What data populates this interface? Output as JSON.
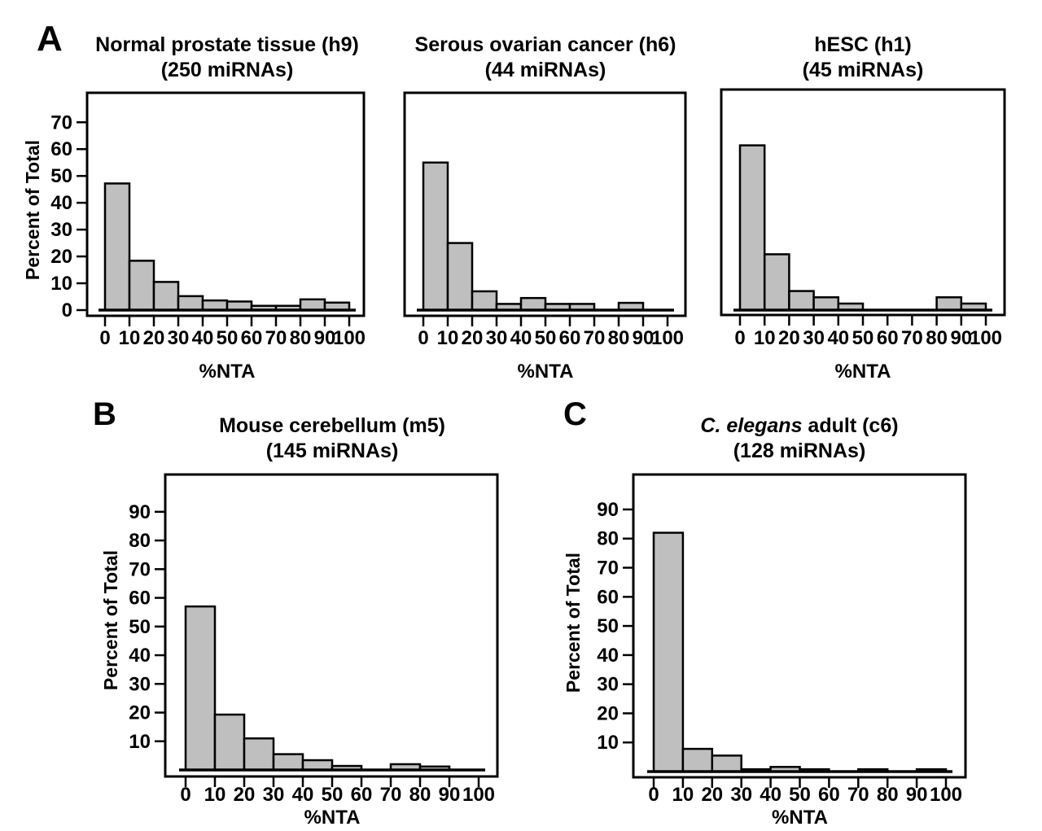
{
  "sections": [
    "A",
    "B",
    "C"
  ],
  "style": {
    "background": "#ffffff",
    "bar_fill": "#bfbfbf",
    "bar_stroke": "#000000",
    "axis_color": "#000000",
    "text_color": "#000000"
  },
  "chart_data": [
    {
      "id": "h9",
      "type": "bar",
      "section": "A",
      "title_parts": [
        {
          "text": "Normal prostate tissue (h9)",
          "italic": false
        }
      ],
      "subtitle": "(250 miRNAs)",
      "n_mirnas": 250,
      "xlabel": "%NTA",
      "ylabel": "Percent of Total",
      "show_ylabel": true,
      "bin_edges": [
        0,
        10,
        20,
        30,
        40,
        50,
        60,
        70,
        80,
        90,
        100
      ],
      "categories": [
        "0-10",
        "10-20",
        "20-30",
        "30-40",
        "40-50",
        "50-60",
        "60-70",
        "70-80",
        "80-90",
        "90-100"
      ],
      "values": [
        47.2,
        18.4,
        10.5,
        5.2,
        3.6,
        3.2,
        1.6,
        1.6,
        4.0,
        2.8
      ],
      "xlim": [
        0,
        100
      ],
      "ylim": [
        0,
        81
      ],
      "xticks": [
        0,
        10,
        20,
        30,
        40,
        50,
        60,
        70,
        80,
        90,
        100
      ],
      "yticks": [
        0,
        10,
        20,
        30,
        40,
        50,
        60,
        70
      ],
      "grid": false
    },
    {
      "id": "h6",
      "type": "bar",
      "section": "A",
      "title_parts": [
        {
          "text": "Serous ovarian cancer (h6)",
          "italic": false
        }
      ],
      "subtitle": "(44 miRNAs)",
      "n_mirnas": 44,
      "xlabel": "%NTA",
      "ylabel": "Percent of Total",
      "show_ylabel": false,
      "bin_edges": [
        0,
        10,
        20,
        30,
        40,
        50,
        60,
        70,
        80,
        90,
        100
      ],
      "categories": [
        "0-10",
        "10-20",
        "20-30",
        "30-40",
        "40-50",
        "50-60",
        "60-70",
        "70-80",
        "80-90",
        "90-100"
      ],
      "values": [
        55.0,
        25.0,
        7.0,
        2.3,
        4.5,
        2.3,
        2.3,
        0,
        2.7,
        0
      ],
      "xlim": [
        0,
        100
      ],
      "ylim": [
        0,
        81
      ],
      "xticks": [
        0,
        10,
        20,
        30,
        40,
        50,
        60,
        70,
        80,
        90,
        100
      ],
      "yticks": [],
      "grid": false
    },
    {
      "id": "h1",
      "type": "bar",
      "section": "A",
      "title_parts": [
        {
          "text": "hESC (h1)",
          "italic": false
        }
      ],
      "subtitle": "(45 miRNAs)",
      "n_mirnas": 45,
      "xlabel": "%NTA",
      "ylabel": "Percent of Total",
      "show_ylabel": false,
      "bin_edges": [
        0,
        10,
        20,
        30,
        40,
        50,
        60,
        70,
        80,
        90,
        100
      ],
      "categories": [
        "0-10",
        "10-20",
        "20-30",
        "30-40",
        "40-50",
        "50-60",
        "60-70",
        "70-80",
        "80-90",
        "90-100"
      ],
      "values": [
        60.5,
        20.5,
        7.0,
        4.7,
        2.4,
        0,
        0,
        0,
        4.7,
        2.4
      ],
      "xlim": [
        0,
        100
      ],
      "ylim": [
        0,
        81
      ],
      "xticks": [
        0,
        10,
        20,
        30,
        40,
        50,
        60,
        70,
        80,
        90,
        100
      ],
      "yticks": [],
      "grid": false
    },
    {
      "id": "m5",
      "type": "bar",
      "section": "B",
      "title_parts": [
        {
          "text": "Mouse cerebellum (m5)",
          "italic": false
        }
      ],
      "subtitle": "(145 miRNAs)",
      "n_mirnas": 145,
      "xlabel": "%NTA",
      "ylabel": "Percent of Total",
      "show_ylabel": true,
      "bin_edges": [
        0,
        10,
        20,
        30,
        40,
        50,
        60,
        70,
        80,
        90,
        100
      ],
      "categories": [
        "0-10",
        "10-20",
        "20-30",
        "30-40",
        "40-50",
        "50-60",
        "60-70",
        "70-80",
        "80-90",
        "90-100"
      ],
      "values": [
        57.0,
        19.3,
        11.0,
        5.5,
        3.4,
        1.4,
        0,
        2.0,
        1.2,
        0
      ],
      "xlim": [
        0,
        100
      ],
      "ylim": [
        0,
        103
      ],
      "xticks": [
        0,
        10,
        20,
        30,
        40,
        50,
        60,
        70,
        80,
        90,
        100
      ],
      "yticks": [
        10,
        20,
        30,
        40,
        50,
        60,
        70,
        80,
        90
      ],
      "grid": false
    },
    {
      "id": "c6",
      "type": "bar",
      "section": "C",
      "title_parts": [
        {
          "text": "C. elegans",
          "italic": true
        },
        {
          "text": " adult (c6)",
          "italic": false
        }
      ],
      "subtitle": "(128 miRNAs)",
      "n_mirnas": 128,
      "xlabel": "%NTA",
      "ylabel": "Percent of Total",
      "show_ylabel": true,
      "bin_edges": [
        0,
        10,
        20,
        30,
        40,
        50,
        60,
        70,
        80,
        90,
        100
      ],
      "categories": [
        "0-10",
        "10-20",
        "20-30",
        "30-40",
        "40-50",
        "50-60",
        "60-70",
        "70-80",
        "80-90",
        "90-100"
      ],
      "values": [
        82.0,
        7.8,
        5.5,
        0.8,
        1.6,
        0.8,
        0,
        0.8,
        0,
        0.8
      ],
      "xlim": [
        0,
        100
      ],
      "ylim": [
        0,
        102
      ],
      "xticks": [
        0,
        10,
        20,
        30,
        40,
        50,
        60,
        70,
        80,
        90,
        100
      ],
      "yticks": [
        10,
        20,
        30,
        40,
        50,
        60,
        70,
        80,
        90
      ],
      "grid": false
    }
  ]
}
